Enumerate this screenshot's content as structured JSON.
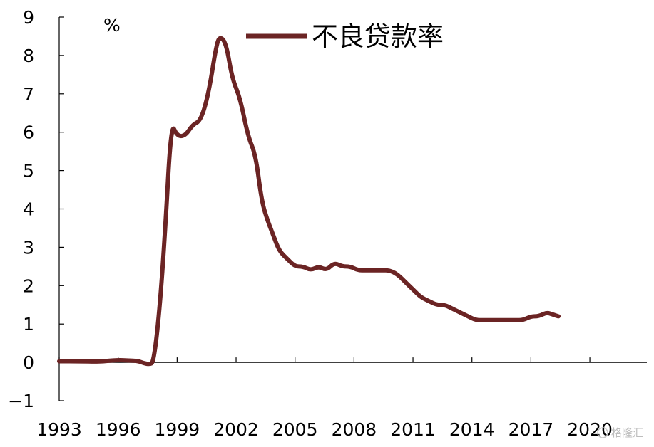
{
  "chart_data": {
    "type": "line",
    "ylabel": "%",
    "ylim": [
      -1,
      9
    ],
    "xlim": [
      1993,
      2022.9
    ],
    "y_ticks": [
      "−1",
      "0",
      "1",
      "2",
      "3",
      "4",
      "5",
      "6",
      "7",
      "8",
      "9"
    ],
    "x_ticks": [
      "1993",
      "1996",
      "1999",
      "2002",
      "2005",
      "2008",
      "2011",
      "2014",
      "2017",
      "2020"
    ],
    "grid": false,
    "legend_position": "top-center",
    "series": [
      {
        "name": "不良贷款率",
        "color": "#6b2424",
        "points": [
          [
            1993.0,
            0.03
          ],
          [
            1994.0,
            0.03
          ],
          [
            1995.0,
            0.02
          ],
          [
            1995.5,
            0.04
          ],
          [
            1996.0,
            0.06
          ],
          [
            1996.5,
            0.05
          ],
          [
            1997.0,
            0.04
          ],
          [
            1997.3,
            -0.02
          ],
          [
            1997.6,
            -0.05
          ],
          [
            1997.8,
            0.0
          ],
          [
            1998.1,
            1.3
          ],
          [
            1998.4,
            3.5
          ],
          [
            1998.7,
            6.25
          ],
          [
            1999.0,
            5.9
          ],
          [
            1999.4,
            5.9
          ],
          [
            1999.8,
            6.2
          ],
          [
            2000.2,
            6.3
          ],
          [
            2000.6,
            7.0
          ],
          [
            2001.0,
            8.3
          ],
          [
            2001.2,
            8.5
          ],
          [
            2001.5,
            8.3
          ],
          [
            2001.8,
            7.4
          ],
          [
            2002.2,
            6.9
          ],
          [
            2002.6,
            5.9
          ],
          [
            2003.0,
            5.4
          ],
          [
            2003.3,
            4.2
          ],
          [
            2003.6,
            3.7
          ],
          [
            2003.9,
            3.3
          ],
          [
            2004.2,
            2.9
          ],
          [
            2004.6,
            2.7
          ],
          [
            2005.0,
            2.5
          ],
          [
            2005.4,
            2.5
          ],
          [
            2005.8,
            2.4
          ],
          [
            2006.2,
            2.5
          ],
          [
            2006.6,
            2.4
          ],
          [
            2007.0,
            2.6
          ],
          [
            2007.4,
            2.5
          ],
          [
            2007.8,
            2.5
          ],
          [
            2008.2,
            2.4
          ],
          [
            2008.6,
            2.4
          ],
          [
            2009.0,
            2.4
          ],
          [
            2009.4,
            2.4
          ],
          [
            2009.8,
            2.4
          ],
          [
            2010.2,
            2.3
          ],
          [
            2010.6,
            2.1
          ],
          [
            2011.0,
            1.9
          ],
          [
            2011.4,
            1.7
          ],
          [
            2011.8,
            1.6
          ],
          [
            2012.2,
            1.5
          ],
          [
            2012.6,
            1.5
          ],
          [
            2013.0,
            1.4
          ],
          [
            2013.4,
            1.3
          ],
          [
            2013.8,
            1.2
          ],
          [
            2014.2,
            1.1
          ],
          [
            2014.6,
            1.1
          ],
          [
            2015.0,
            1.1
          ],
          [
            2015.4,
            1.1
          ],
          [
            2015.8,
            1.1
          ],
          [
            2016.2,
            1.1
          ],
          [
            2016.6,
            1.1
          ],
          [
            2017.0,
            1.2
          ],
          [
            2017.4,
            1.2
          ],
          [
            2017.8,
            1.3
          ],
          [
            2018.1,
            1.25
          ],
          [
            2018.4,
            1.2
          ]
        ]
      }
    ]
  },
  "watermark": {
    "text": "格隆汇"
  }
}
